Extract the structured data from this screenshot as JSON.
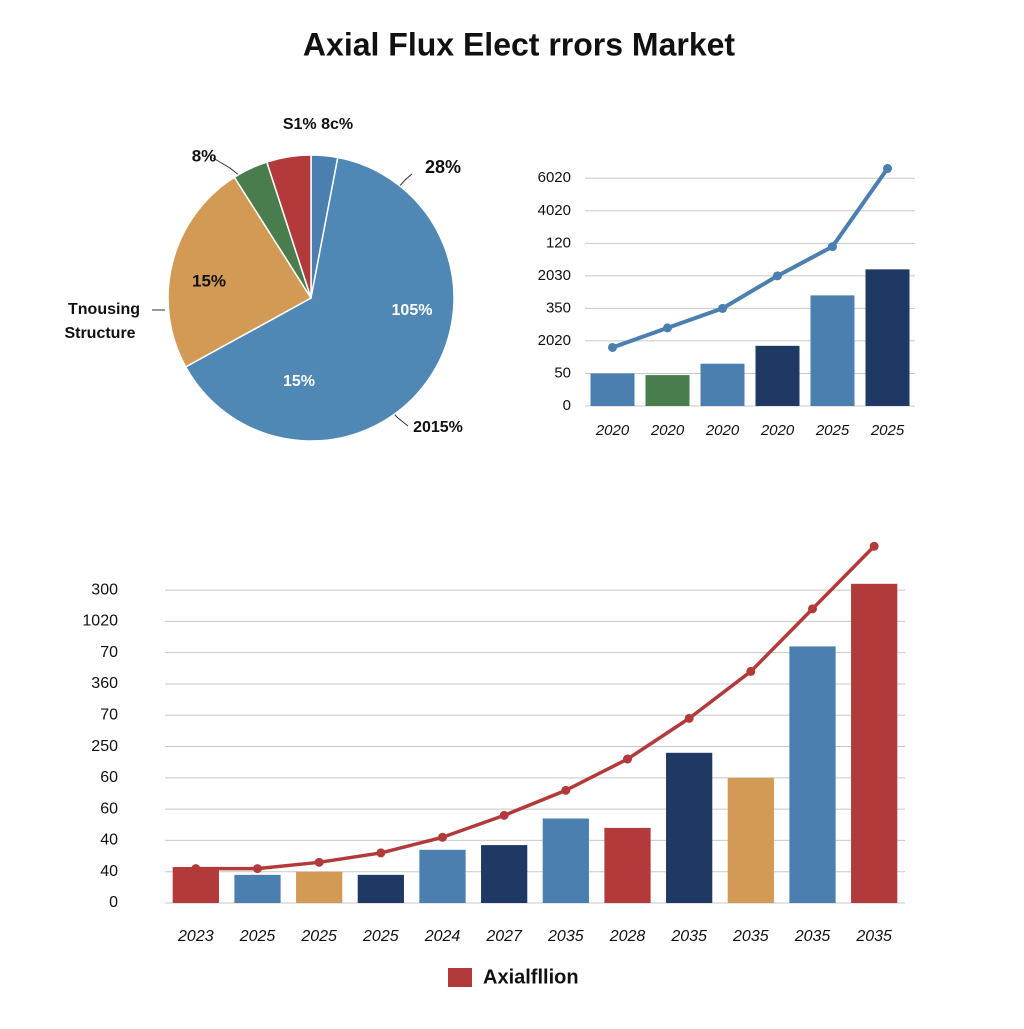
{
  "title": "Axial Flux Elect rrors Market",
  "chart_data": [
    {
      "type": "pie",
      "values": [
        3,
        64,
        24,
        4,
        5
      ],
      "colors": [
        "#4a7fb0",
        "#4f87b5",
        "#d39a55",
        "#4a7d4e",
        "#b33a3a"
      ],
      "annotations": [
        "S1% 8c%",
        "8%",
        "28%",
        "15%",
        "105%",
        "15%",
        "2015%",
        "Tnousing",
        "Structure"
      ]
    },
    {
      "type": "combo",
      "categories": [
        "2020",
        "2020",
        "2020",
        "2020",
        "2025",
        "2025"
      ],
      "ylim": [
        0,
        7.5
      ],
      "yticks": [
        {
          "value": 0,
          "label": "0"
        },
        {
          "value": 1,
          "label": "50"
        },
        {
          "value": 2,
          "label": "2020"
        },
        {
          "value": 3,
          "label": "350"
        },
        {
          "value": 4,
          "label": "2030"
        },
        {
          "value": 5,
          "label": "120"
        },
        {
          "value": 6,
          "label": "4020"
        },
        {
          "value": 7,
          "label": "6020"
        }
      ],
      "grid": true,
      "series": [
        {
          "type": "bar",
          "colors": [
            "#4a7fb0",
            "#4a7d4e",
            "#4a7fb0",
            "#1f3864",
            "#4a7fb0",
            "#1f3864"
          ],
          "values": [
            1.0,
            0.95,
            1.3,
            1.85,
            3.4,
            4.2
          ]
        },
        {
          "type": "line",
          "color": "#4a7fb0",
          "values": [
            1.8,
            2.4,
            3.0,
            4.0,
            4.9,
            7.3
          ]
        }
      ]
    },
    {
      "type": "combo",
      "categories": [
        "2023",
        "2025",
        "2025",
        "2025",
        "2024",
        "2027",
        "2035",
        "2028",
        "2035",
        "2035",
        "2035",
        "2035"
      ],
      "ylim": [
        0,
        11.6
      ],
      "yticks": [
        {
          "value": 0,
          "label": "0"
        },
        {
          "value": 1,
          "label": "40"
        },
        {
          "value": 2,
          "label": "40"
        },
        {
          "value": 3,
          "label": "60"
        },
        {
          "value": 4,
          "label": "60"
        },
        {
          "value": 5,
          "label": "250"
        },
        {
          "value": 6,
          "label": "70"
        },
        {
          "value": 7,
          "label": "360"
        },
        {
          "value": 8,
          "label": "70"
        },
        {
          "value": 9,
          "label": "1020"
        },
        {
          "value": 10,
          "label": "300"
        }
      ],
      "grid": true,
      "series": [
        {
          "type": "bar",
          "colors": [
            "#b33a3a",
            "#4a7fb0",
            "#d39a55",
            "#1f3864",
            "#4a7fb0",
            "#1f3864",
            "#4a7fb0",
            "#b33a3a",
            "#1f3864",
            "#d39a55",
            "#4a7fb0",
            "#b33a3a"
          ],
          "values": [
            1.15,
            0.9,
            1.0,
            0.9,
            1.7,
            1.85,
            2.7,
            2.4,
            4.8,
            4.0,
            8.2,
            10.2
          ]
        },
        {
          "type": "line",
          "name": "Axialfllion",
          "color": "#b33a3a",
          "values": [
            1.1,
            1.1,
            1.3,
            1.6,
            2.1,
            2.8,
            3.6,
            4.6,
            5.9,
            7.4,
            9.4,
            11.4
          ]
        }
      ]
    }
  ]
}
